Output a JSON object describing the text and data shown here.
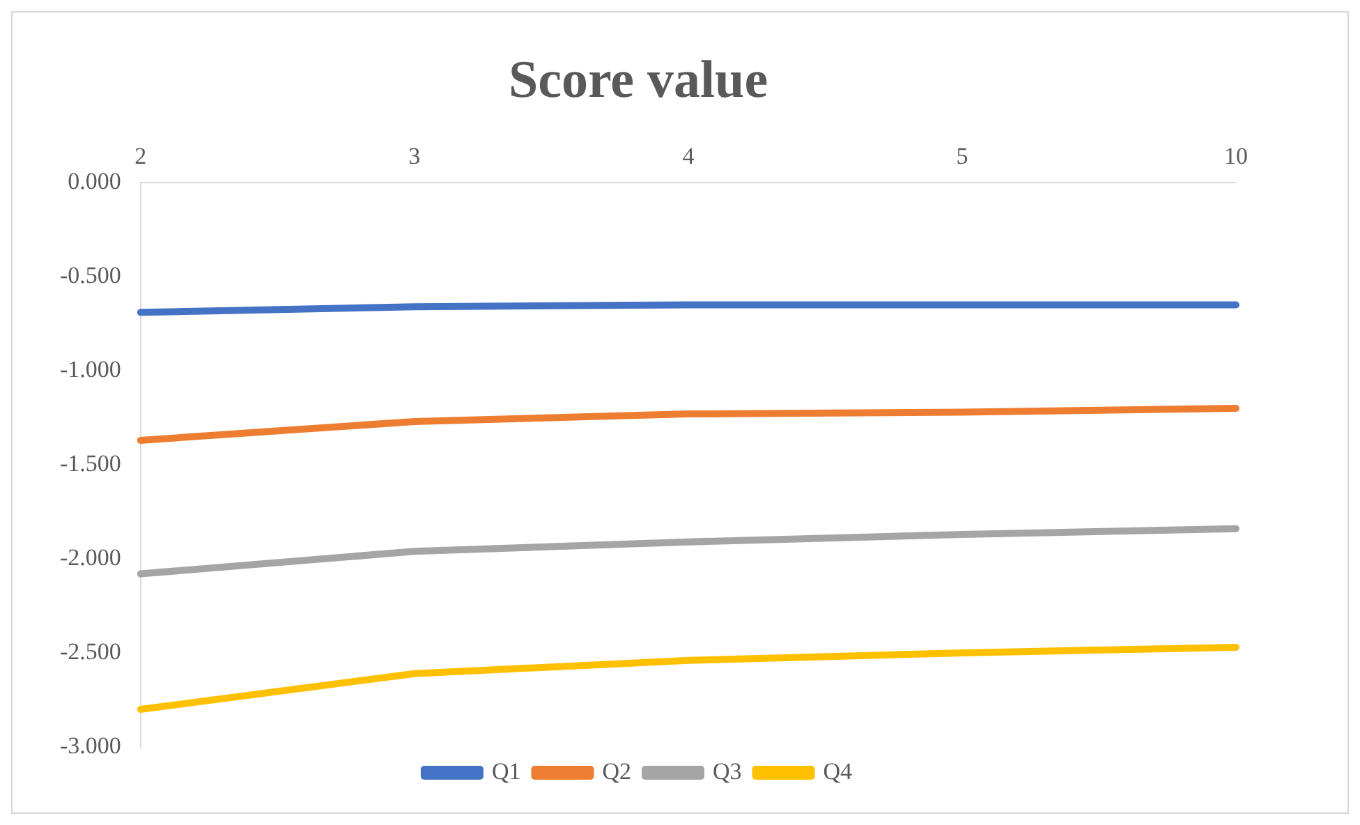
{
  "chart_data": {
    "type": "line",
    "title": "Score value",
    "categories": [
      "2",
      "3",
      "4",
      "5",
      "10"
    ],
    "series": [
      {
        "name": "Q1",
        "color": "#4472c4",
        "values": [
          -0.69,
          -0.66,
          -0.65,
          -0.65,
          -0.65
        ]
      },
      {
        "name": "Q2",
        "color": "#ed7d31",
        "values": [
          -1.37,
          -1.27,
          -1.23,
          -1.22,
          -1.2
        ]
      },
      {
        "name": "Q3",
        "color": "#a5a5a5",
        "values": [
          -2.08,
          -1.96,
          -1.91,
          -1.87,
          -1.84
        ]
      },
      {
        "name": "Q4",
        "color": "#ffc000",
        "values": [
          -2.8,
          -2.61,
          -2.54,
          -2.5,
          -2.47
        ]
      }
    ],
    "ylim": [
      -3,
      0
    ],
    "yticks": [
      {
        "value": 0,
        "label": "0.000"
      },
      {
        "value": -0.5,
        "label": "-0.500"
      },
      {
        "value": -1,
        "label": "-1.000"
      },
      {
        "value": -1.5,
        "label": "-1.500"
      },
      {
        "value": -2,
        "label": "-2.000"
      },
      {
        "value": -2.5,
        "label": "-2.500"
      },
      {
        "value": -3,
        "label": "-3.000"
      }
    ],
    "grid": false,
    "legend": "bottom",
    "marker": "none",
    "line_style": "solid"
  }
}
